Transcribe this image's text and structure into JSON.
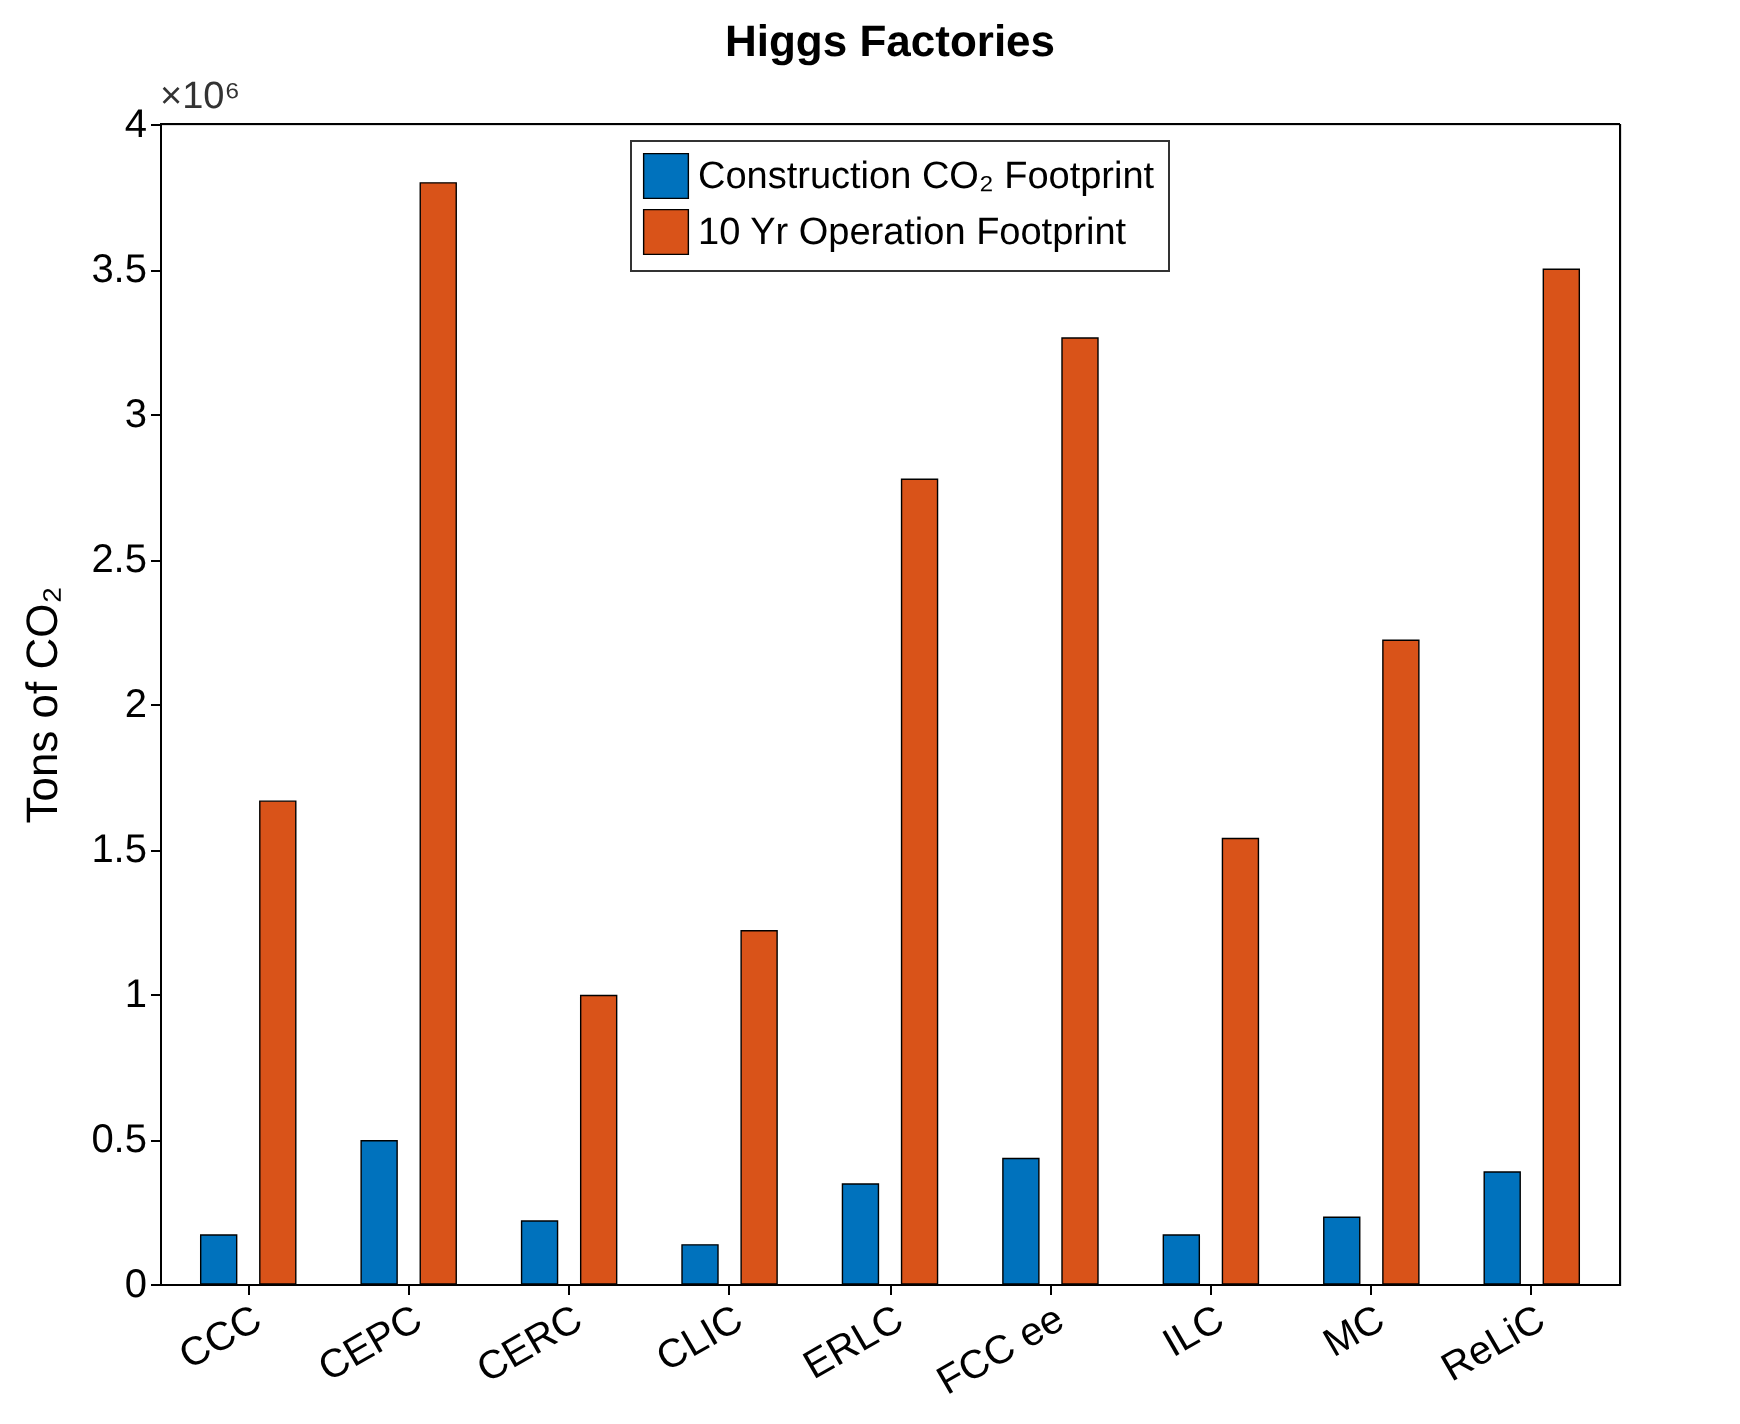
{
  "chart_data": {
    "type": "bar",
    "title": "Higgs Factories",
    "ylabel": "Tons of CO₂",
    "categories": [
      "CCC",
      "CEPC",
      "CERC",
      "CLIC",
      "ERLC",
      "FCC ee",
      "ILC",
      "MC",
      "ReLiC"
    ],
    "series": [
      {
        "name": "Construction CO₂ Footprint",
        "color": "#0072bd",
        "values": [
          0.169,
          0.494,
          0.217,
          0.135,
          0.345,
          0.433,
          0.169,
          0.23,
          0.386
        ]
      },
      {
        "name": "10 Yr Operation Footprint",
        "color": "#d95319",
        "values": [
          1.665,
          3.797,
          0.995,
          1.218,
          2.775,
          3.262,
          1.536,
          2.22,
          3.499
        ]
      }
    ],
    "ylim": [
      0,
      4
    ],
    "yticks": [
      0,
      0.5,
      1,
      1.5,
      2,
      2.5,
      3,
      3.5,
      4
    ],
    "annotations": [
      "×10⁶"
    ],
    "legend": "top",
    "grid": false
  }
}
